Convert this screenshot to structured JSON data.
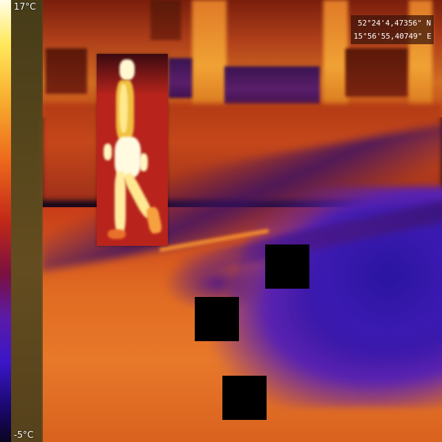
{
  "thermal_scale": {
    "max_label": "17°C",
    "min_label": "-5°C",
    "palette": [
      "#fffde8",
      "#ffe85a",
      "#ee6a1c",
      "#c22818",
      "#5a1aa8",
      "#1a0870"
    ]
  },
  "gps": {
    "latitude": "52°24'4,47356\" N",
    "longitude": "15°56'55,40749\" E"
  },
  "detection": {
    "label": "pedestrian",
    "color": "#b8241c"
  },
  "masks": {
    "color": "#000000",
    "count": 3
  }
}
